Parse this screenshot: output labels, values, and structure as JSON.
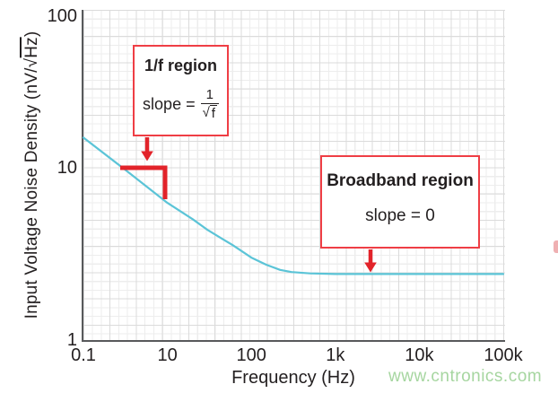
{
  "colors": {
    "curve": "#5bc4d7",
    "annotation_red": "#e2232a",
    "box_border_red": "#ef3e45",
    "grid_minor": "#ededed",
    "grid_major": "#dbdbdb",
    "axis": "#58595b",
    "text": "#231f20",
    "watermark_green": "#a6d6a0"
  },
  "y_axis": {
    "title_pre": "Input Voltage Noise Density (nV/√",
    "overlined": "Hz",
    "title_post": ")",
    "ticks": [
      "100",
      "10",
      "1"
    ]
  },
  "x_axis": {
    "ticks": [
      "0.1",
      "10",
      "100",
      "1k",
      "10k",
      "100k"
    ],
    "title": "Frequency (Hz)"
  },
  "annotations": {
    "one_over_f": {
      "title": "1/f region",
      "slope_prefix": "slope =",
      "frac_numerator": "1",
      "frac_radical": "√",
      "frac_denominator": "f"
    },
    "broadband": {
      "title": "Broadband region",
      "slope_text": "slope = 0"
    }
  },
  "watermark": {
    "text": "www.cntronics.com"
  },
  "chart_data": {
    "type": "line",
    "title": "",
    "xlabel": "Frequency (Hz)",
    "ylabel": "Input Voltage Noise Density (nV/√Hz)",
    "x_scale": "log",
    "y_scale": "log",
    "x_tick_labels": [
      "0.1",
      "10",
      "100",
      "1k",
      "10k",
      "100k"
    ],
    "y_tick_labels": [
      "1",
      "10",
      "100"
    ],
    "ylim": [
      1,
      100
    ],
    "grid": "on (fine square minor + major grid)",
    "legend": "none",
    "series": [
      {
        "name": "Input voltage noise density",
        "color": "#5bc4d7",
        "points": [
          [
            0.1,
            17
          ],
          [
            1,
            10.8
          ],
          [
            10,
            6.8
          ],
          [
            20,
            5.4
          ],
          [
            30,
            4.65
          ],
          [
            45,
            4.1
          ],
          [
            60,
            3.75
          ],
          [
            100,
            3.15
          ],
          [
            150,
            2.85
          ],
          [
            220,
            2.65
          ],
          [
            300,
            2.57
          ],
          [
            500,
            2.52
          ],
          [
            1000,
            2.5
          ],
          [
            10000,
            2.5
          ],
          [
            100000,
            2.5
          ]
        ]
      }
    ],
    "regions": [
      {
        "name": "1/f region",
        "slope": "1/√f"
      },
      {
        "name": "Broadband region",
        "slope": "0"
      }
    ]
  }
}
